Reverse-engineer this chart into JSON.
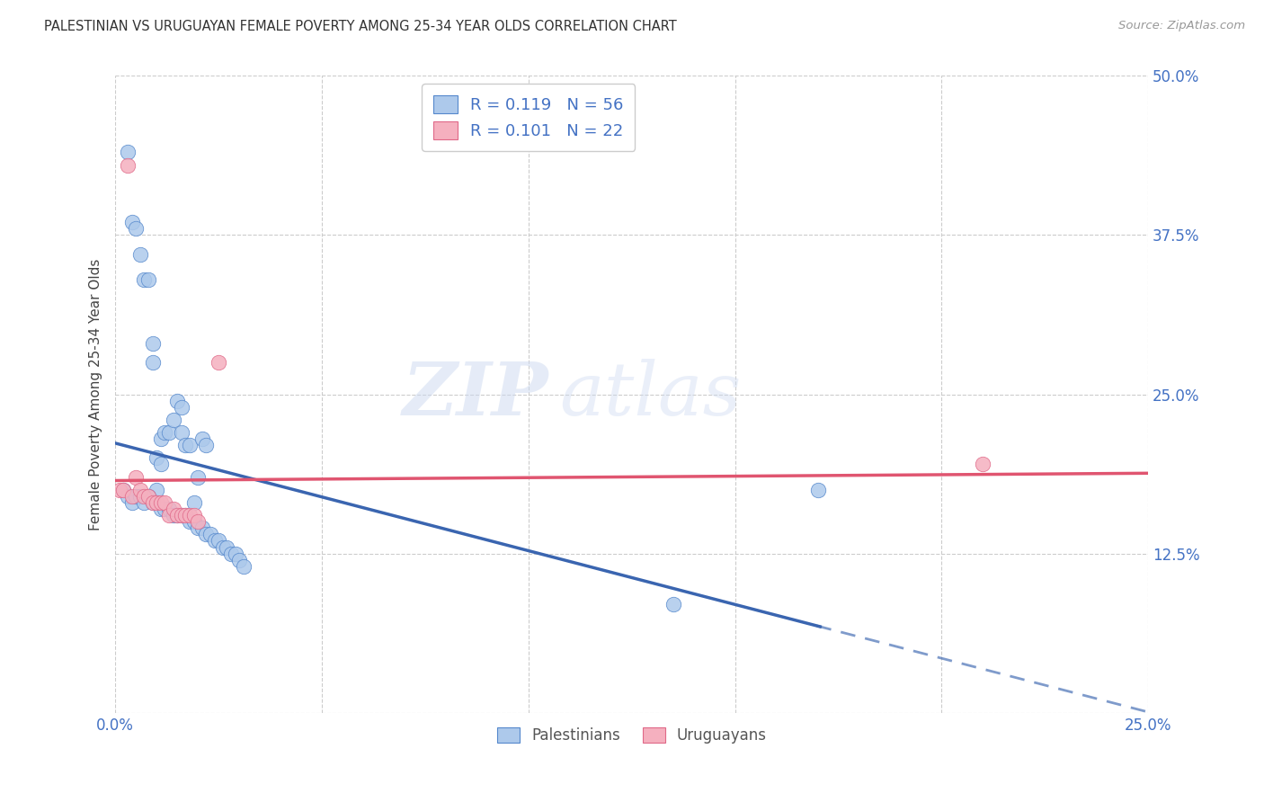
{
  "title": "PALESTINIAN VS URUGUAYAN FEMALE POVERTY AMONG 25-34 YEAR OLDS CORRELATION CHART",
  "source_text": "Source: ZipAtlas.com",
  "ylabel": "Female Poverty Among 25-34 Year Olds",
  "xlim": [
    0.0,
    0.25
  ],
  "ylim": [
    0.0,
    0.5
  ],
  "background_color": "#ffffff",
  "palestinian_color": "#adc9eb",
  "palestinian_edge_color": "#5588cc",
  "uruguayan_color": "#f5b0bf",
  "uruguayan_edge_color": "#e06888",
  "palestinian_line_color": "#3a65b0",
  "uruguayan_line_color": "#e05570",
  "grid_color": "#cccccc",
  "R_pal": "0.119",
  "N_pal": "56",
  "R_uru": "0.101",
  "N_uru": "22",
  "tick_color": "#4472c4",
  "watermark_zip": "ZIP",
  "watermark_atlas": "atlas",
  "palestinians_x": [
    0.003,
    0.004,
    0.005,
    0.006,
    0.007,
    0.008,
    0.009,
    0.009,
    0.01,
    0.01,
    0.011,
    0.011,
    0.012,
    0.013,
    0.014,
    0.015,
    0.016,
    0.016,
    0.017,
    0.018,
    0.019,
    0.02,
    0.021,
    0.022,
    0.002,
    0.003,
    0.004,
    0.005,
    0.006,
    0.007,
    0.008,
    0.009,
    0.01,
    0.011,
    0.012,
    0.013,
    0.014,
    0.015,
    0.016,
    0.017,
    0.018,
    0.019,
    0.02,
    0.021,
    0.022,
    0.023,
    0.024,
    0.025,
    0.026,
    0.027,
    0.028,
    0.029,
    0.03,
    0.031,
    0.135,
    0.17
  ],
  "palestinians_y": [
    0.44,
    0.385,
    0.38,
    0.36,
    0.34,
    0.34,
    0.29,
    0.275,
    0.2,
    0.175,
    0.195,
    0.215,
    0.22,
    0.22,
    0.23,
    0.245,
    0.24,
    0.22,
    0.21,
    0.21,
    0.165,
    0.185,
    0.215,
    0.21,
    0.175,
    0.17,
    0.165,
    0.17,
    0.17,
    0.165,
    0.17,
    0.165,
    0.165,
    0.16,
    0.16,
    0.16,
    0.155,
    0.155,
    0.155,
    0.155,
    0.15,
    0.15,
    0.145,
    0.145,
    0.14,
    0.14,
    0.135,
    0.135,
    0.13,
    0.13,
    0.125,
    0.125,
    0.12,
    0.115,
    0.085,
    0.175
  ],
  "uruguayans_x": [
    0.001,
    0.002,
    0.003,
    0.004,
    0.005,
    0.006,
    0.007,
    0.008,
    0.009,
    0.01,
    0.011,
    0.012,
    0.013,
    0.014,
    0.015,
    0.016,
    0.017,
    0.018,
    0.019,
    0.02,
    0.025,
    0.21
  ],
  "uruguayans_y": [
    0.175,
    0.175,
    0.43,
    0.17,
    0.185,
    0.175,
    0.17,
    0.17,
    0.165,
    0.165,
    0.165,
    0.165,
    0.155,
    0.16,
    0.155,
    0.155,
    0.155,
    0.155,
    0.155,
    0.15,
    0.275,
    0.195
  ]
}
